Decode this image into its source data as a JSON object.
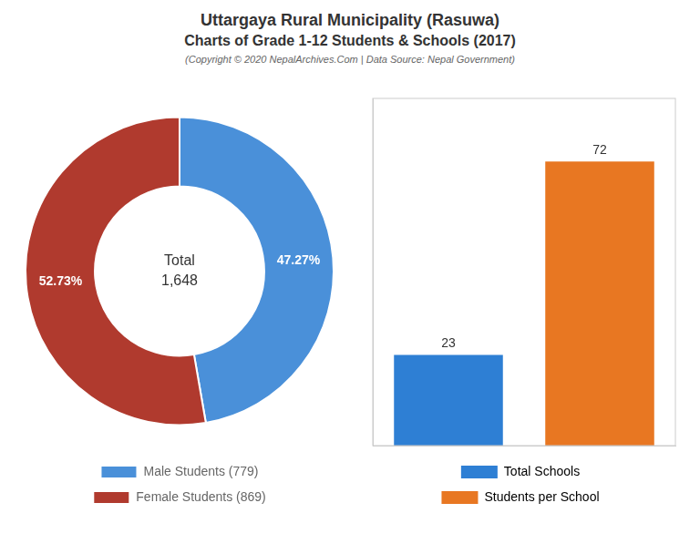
{
  "title": "Uttargaya Rural Municipality (Rasuwa)",
  "subtitle": "Charts of Grade 1-12 Students & Schools (2017)",
  "annotations": [
    "(Copyright © 2020 NepalArchives.Com | Data Source: Nepal Government)"
  ],
  "chart_data": [
    {
      "type": "doughnut",
      "categories": [
        "Male Students (779)",
        "Female Students (869)"
      ],
      "values": [
        47.27,
        52.73
      ],
      "value_labels": [
        "47.27%",
        "52.73%"
      ],
      "colors": [
        "#4a90d9",
        "#b03a2e"
      ],
      "data_labels": true,
      "annotations": [
        "Total",
        "1,648"
      ],
      "legend": "bottom"
    },
    {
      "type": "bar",
      "categories": [
        "Total Schools",
        "Students per School"
      ],
      "values": [
        23,
        72
      ],
      "colors": [
        "#2e7fd4",
        "#e87722"
      ],
      "ylim": [
        0,
        88
      ],
      "grid": false,
      "tick_labels": false,
      "data_labels": true,
      "legend": "bottom"
    }
  ]
}
